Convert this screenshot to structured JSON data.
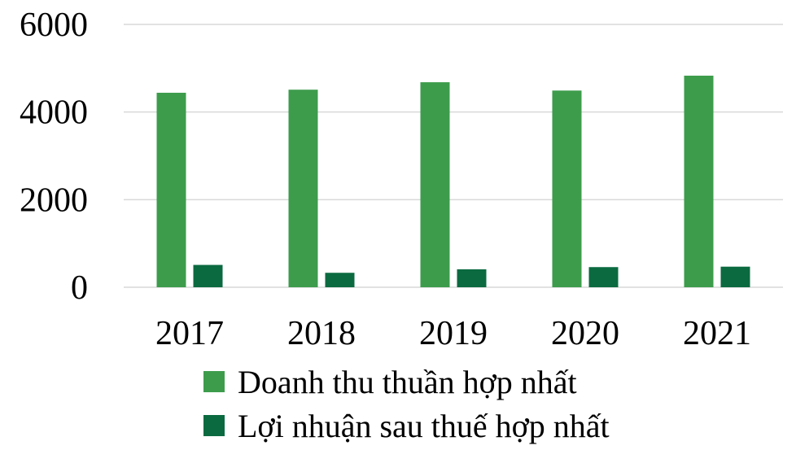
{
  "chart_data": {
    "type": "bar",
    "title": "",
    "xlabel": "",
    "ylabel": "",
    "ylim": [
      0,
      6000
    ],
    "yticks": [
      "0",
      "2000",
      "4000",
      "6000"
    ],
    "grid": true,
    "legend_position": "bottom",
    "categories": [
      "2017",
      "2018",
      "2019",
      "2020",
      "2021"
    ],
    "series": [
      {
        "name": "Doanh thu thuần hợp nhất",
        "color": "#3d9c4c",
        "values": [
          4440,
          4510,
          4680,
          4490,
          4830
        ]
      },
      {
        "name": "Lợi nhuận sau thuế hợp nhất",
        "color": "#0b6a40",
        "values": [
          510,
          330,
          410,
          460,
          470
        ]
      }
    ]
  }
}
